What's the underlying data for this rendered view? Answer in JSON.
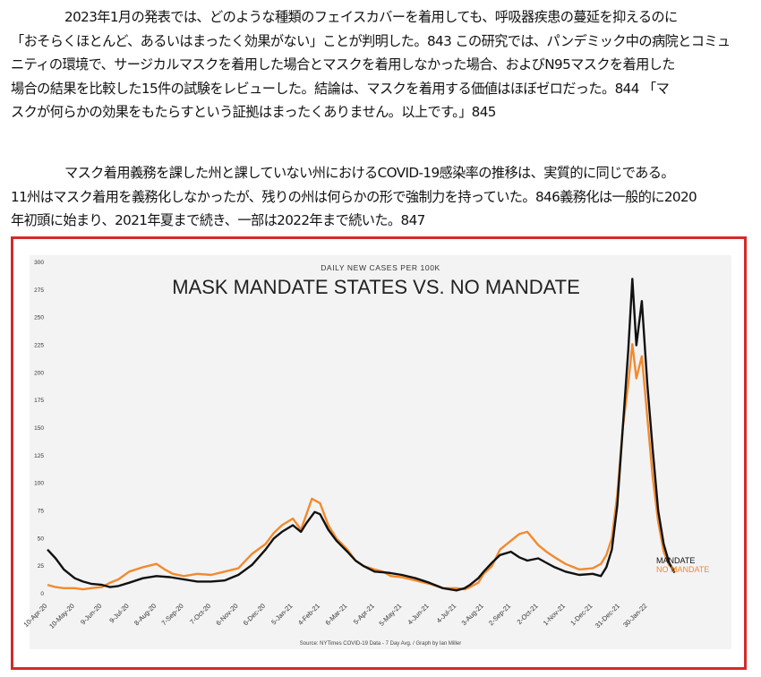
{
  "paragraphs": [
    {
      "lines": [
        "2023年1月の発表では、どのような種類のフェイスカバーを着用しても、呼吸器疾患の蔓延を抑えるのに",
        "「おそらくほとんど、あるいはまったく効果がない」ことが判明した。843 この研究では、パンデミック中の病院とコミュ",
        "ニティの環境で、サージカルマスクを着用した場合とマスクを着用しなかった場合、およびN95マスクを着用した",
        "場合の結果を比較した15件の試験をレビューした。結論は、マスクを着用する価値はほぼゼロだった。844 「マ",
        "スクが何らかの効果をもたらすという証拠はまったくありません。以上です。」845"
      ]
    },
    {
      "lines": [
        "マスク着用義務を課した州と課していない州におけるCOVID-19感染率の推移は、実質的に同じである。",
        "11州はマスク着用を義務化しなかったが、残りの州は何らかの形で強制力を持っていた。846義務化は一般的に2020",
        "年初頭に始まり、2021年夏まで続き、一部は2022年まで続いた。847"
      ]
    }
  ],
  "chart_data": {
    "type": "line",
    "subtitle": "DAILY NEW CASES PER 100K",
    "title": "MASK MANDATE STATES VS. NO MANDATE",
    "source": "Source: NYTimes COVID-19 Data - 7 Day Avg. / Graph by Ian Miller",
    "ylim": [
      0,
      300
    ],
    "y_ticks": [
      0,
      25,
      50,
      75,
      100,
      125,
      150,
      175,
      200,
      225,
      250,
      275,
      300
    ],
    "x_ticks": [
      "10-Apr-20",
      "10-May-20",
      "9-Jun-20",
      "9-Jul-20",
      "8-Aug-20",
      "7-Sep-20",
      "7-Oct-20",
      "6-Nov-20",
      "6-Dec-20",
      "5-Jan-21",
      "4-Feb-21",
      "6-Mar-21",
      "5-Apr-21",
      "5-May-21",
      "4-Jun-21",
      "4-Jul-21",
      "3-Aug-21",
      "2-Sep-21",
      "2-Oct-21",
      "1-Nov-21",
      "1-Dec-21",
      "31-Dec-21",
      "30-Jan-22"
    ],
    "grid": false,
    "series": [
      {
        "name": "MANDATE",
        "color": "#111111",
        "points": [
          [
            0,
            40
          ],
          [
            0.3,
            32
          ],
          [
            0.6,
            22
          ],
          [
            1,
            14
          ],
          [
            1.3,
            11
          ],
          [
            1.6,
            9
          ],
          [
            2,
            8
          ],
          [
            2.3,
            6
          ],
          [
            2.6,
            7
          ],
          [
            3,
            10
          ],
          [
            3.5,
            14
          ],
          [
            4,
            16
          ],
          [
            4.5,
            15
          ],
          [
            5,
            13
          ],
          [
            5.5,
            11
          ],
          [
            6,
            11
          ],
          [
            6.5,
            12
          ],
          [
            7,
            17
          ],
          [
            7.5,
            26
          ],
          [
            8,
            40
          ],
          [
            8.3,
            50
          ],
          [
            8.6,
            56
          ],
          [
            9,
            62
          ],
          [
            9.3,
            56
          ],
          [
            9.5,
            64
          ],
          [
            9.8,
            74
          ],
          [
            10,
            72
          ],
          [
            10.3,
            58
          ],
          [
            10.6,
            48
          ],
          [
            11,
            38
          ],
          [
            11.3,
            30
          ],
          [
            11.6,
            25
          ],
          [
            12,
            20
          ],
          [
            12.5,
            19
          ],
          [
            13,
            17
          ],
          [
            13.5,
            14
          ],
          [
            14,
            10
          ],
          [
            14.5,
            5
          ],
          [
            15,
            3
          ],
          [
            15.3,
            5
          ],
          [
            15.5,
            8
          ],
          [
            15.8,
            14
          ],
          [
            16,
            20
          ],
          [
            16.3,
            28
          ],
          [
            16.6,
            35
          ],
          [
            17,
            38
          ],
          [
            17.3,
            33
          ],
          [
            17.6,
            30
          ],
          [
            18,
            32
          ],
          [
            18.3,
            28
          ],
          [
            18.6,
            24
          ],
          [
            19,
            20
          ],
          [
            19.5,
            17
          ],
          [
            20,
            18
          ],
          [
            20.3,
            16
          ],
          [
            20.5,
            24
          ],
          [
            20.7,
            40
          ],
          [
            20.9,
            80
          ],
          [
            21.1,
            150
          ],
          [
            21.3,
            220
          ],
          [
            21.45,
            285
          ],
          [
            21.6,
            225
          ],
          [
            21.8,
            265
          ],
          [
            22,
            190
          ],
          [
            22.2,
            130
          ],
          [
            22.4,
            75
          ],
          [
            22.6,
            45
          ],
          [
            22.8,
            28
          ],
          [
            23,
            19
          ]
        ]
      },
      {
        "name": "NO MANDATE",
        "color": "#f28a2e",
        "points": [
          [
            0,
            8
          ],
          [
            0.3,
            6
          ],
          [
            0.6,
            5
          ],
          [
            1,
            5
          ],
          [
            1.3,
            4
          ],
          [
            1.6,
            5
          ],
          [
            2,
            6
          ],
          [
            2.3,
            10
          ],
          [
            2.6,
            13
          ],
          [
            3,
            20
          ],
          [
            3.5,
            24
          ],
          [
            4,
            27
          ],
          [
            4.3,
            22
          ],
          [
            4.6,
            18
          ],
          [
            5,
            16
          ],
          [
            5.5,
            18
          ],
          [
            6,
            17
          ],
          [
            6.5,
            20
          ],
          [
            7,
            23
          ],
          [
            7.5,
            36
          ],
          [
            8,
            45
          ],
          [
            8.3,
            55
          ],
          [
            8.6,
            62
          ],
          [
            9,
            68
          ],
          [
            9.3,
            58
          ],
          [
            9.5,
            72
          ],
          [
            9.7,
            86
          ],
          [
            10,
            82
          ],
          [
            10.3,
            62
          ],
          [
            10.6,
            50
          ],
          [
            11,
            40
          ],
          [
            11.3,
            30
          ],
          [
            11.6,
            25
          ],
          [
            12,
            22
          ],
          [
            12.3,
            20
          ],
          [
            12.6,
            16
          ],
          [
            13,
            15
          ],
          [
            13.5,
            12
          ],
          [
            14,
            9
          ],
          [
            14.5,
            5
          ],
          [
            15,
            5
          ],
          [
            15.3,
            4
          ],
          [
            15.5,
            6
          ],
          [
            15.8,
            10
          ],
          [
            16,
            18
          ],
          [
            16.3,
            25
          ],
          [
            16.6,
            40
          ],
          [
            17,
            48
          ],
          [
            17.3,
            54
          ],
          [
            17.6,
            56
          ],
          [
            18,
            44
          ],
          [
            18.3,
            38
          ],
          [
            18.6,
            33
          ],
          [
            19,
            27
          ],
          [
            19.5,
            22
          ],
          [
            20,
            23
          ],
          [
            20.3,
            27
          ],
          [
            20.5,
            35
          ],
          [
            20.7,
            50
          ],
          [
            20.9,
            90
          ],
          [
            21.1,
            150
          ],
          [
            21.3,
            190
          ],
          [
            21.45,
            226
          ],
          [
            21.6,
            195
          ],
          [
            21.8,
            215
          ],
          [
            22,
            160
          ],
          [
            22.2,
            105
          ],
          [
            22.4,
            65
          ],
          [
            22.6,
            38
          ],
          [
            22.8,
            26
          ],
          [
            23,
            22
          ]
        ]
      }
    ],
    "legend_position": "right, at line ends"
  },
  "colors": {
    "frame_border": "#d42a2a",
    "chart_background": "#f3f3f3"
  }
}
